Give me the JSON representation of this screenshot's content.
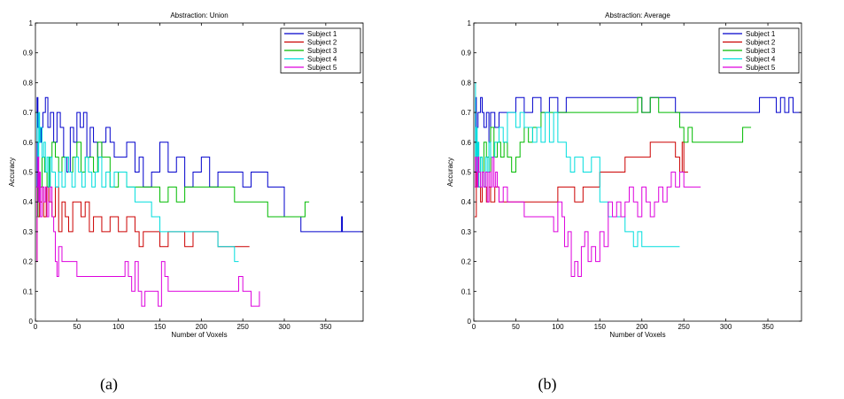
{
  "captions": [
    "(a)",
    "(b)"
  ],
  "colors": [
    "#0000cc",
    "#cc0000",
    "#00bb00",
    "#00dddd",
    "#dd00dd"
  ],
  "chart_data": [
    {
      "type": "line",
      "title": "Abstraction: Union",
      "xlabel": "Number of Voxels",
      "ylabel": "Accuracy",
      "xlim": [
        0,
        395
      ],
      "ylim": [
        0,
        1
      ],
      "xticks": [
        "0",
        "50",
        "100",
        "150",
        "200",
        "250",
        "300",
        "350"
      ],
      "yticks": [
        "0",
        "0.1",
        "0.2",
        "0.3",
        "0.4",
        "0.5",
        "0.6",
        "0.7",
        "0.8",
        "0.9",
        "1"
      ],
      "legend": "top-right",
      "series": [
        {
          "name": "Subject 1",
          "x": [
            1,
            2,
            3,
            5,
            7,
            9,
            12,
            15,
            18,
            22,
            26,
            30,
            34,
            38,
            42,
            46,
            50,
            54,
            58,
            62,
            66,
            70,
            75,
            80,
            85,
            90,
            95,
            100,
            110,
            120,
            125,
            130,
            140,
            150,
            160,
            170,
            180,
            190,
            200,
            210,
            220,
            230,
            250,
            260,
            280,
            300,
            320,
            330,
            340,
            350,
            360,
            368,
            369,
            370,
            380,
            395
          ],
          "y": [
            0.45,
            0.75,
            0.65,
            0.6,
            0.65,
            0.7,
            0.75,
            0.65,
            0.7,
            0.6,
            0.7,
            0.65,
            0.55,
            0.5,
            0.65,
            0.6,
            0.7,
            0.65,
            0.7,
            0.55,
            0.65,
            0.6,
            0.55,
            0.6,
            0.65,
            0.6,
            0.55,
            0.55,
            0.6,
            0.5,
            0.55,
            0.45,
            0.5,
            0.6,
            0.5,
            0.55,
            0.45,
            0.5,
            0.55,
            0.45,
            0.5,
            0.5,
            0.45,
            0.5,
            0.45,
            0.35,
            0.3,
            0.3,
            0.3,
            0.3,
            0.3,
            0.3,
            0.35,
            0.3,
            0.3,
            0.3
          ]
        },
        {
          "name": "Subject 2",
          "x": [
            1,
            2,
            3,
            5,
            8,
            10,
            13,
            16,
            20,
            24,
            28,
            32,
            36,
            40,
            45,
            50,
            55,
            60,
            65,
            70,
            80,
            90,
            100,
            110,
            120,
            125,
            130,
            140,
            150,
            160,
            170,
            180,
            190,
            200,
            210,
            220,
            225,
            258
          ],
          "y": [
            0.2,
            0.45,
            0.35,
            0.4,
            0.45,
            0.35,
            0.45,
            0.4,
            0.35,
            0.45,
            0.3,
            0.4,
            0.35,
            0.3,
            0.4,
            0.4,
            0.35,
            0.4,
            0.3,
            0.35,
            0.3,
            0.35,
            0.3,
            0.35,
            0.3,
            0.25,
            0.3,
            0.3,
            0.25,
            0.3,
            0.3,
            0.25,
            0.3,
            0.3,
            0.3,
            0.25,
            0.25,
            0.25
          ]
        },
        {
          "name": "Subject 3",
          "x": [
            1,
            3,
            5,
            8,
            11,
            14,
            17,
            20,
            24,
            28,
            32,
            36,
            40,
            45,
            50,
            55,
            60,
            65,
            70,
            75,
            80,
            85,
            90,
            100,
            110,
            120,
            130,
            140,
            150,
            160,
            170,
            180,
            190,
            200,
            210,
            220,
            230,
            240,
            260,
            280,
            300,
            320,
            325,
            330
          ],
          "y": [
            0.35,
            0.5,
            0.45,
            0.55,
            0.5,
            0.45,
            0.55,
            0.6,
            0.55,
            0.5,
            0.55,
            0.55,
            0.5,
            0.55,
            0.6,
            0.5,
            0.55,
            0.55,
            0.5,
            0.6,
            0.55,
            0.55,
            0.45,
            0.5,
            0.45,
            0.45,
            0.45,
            0.45,
            0.4,
            0.45,
            0.4,
            0.45,
            0.45,
            0.45,
            0.45,
            0.45,
            0.45,
            0.4,
            0.4,
            0.35,
            0.35,
            0.35,
            0.4,
            0.4
          ]
        },
        {
          "name": "Subject 4",
          "x": [
            1,
            2,
            3,
            4,
            5,
            6,
            8,
            10,
            12,
            14,
            16,
            18,
            20,
            24,
            28,
            32,
            36,
            40,
            44,
            48,
            52,
            56,
            60,
            64,
            68,
            72,
            76,
            80,
            85,
            90,
            95,
            100,
            110,
            120,
            130,
            140,
            150,
            160,
            170,
            180,
            190,
            200,
            210,
            220,
            230,
            240,
            245
          ],
          "y": [
            0.7,
            0.6,
            0.55,
            0.7,
            0.6,
            0.65,
            0.55,
            0.6,
            0.5,
            0.55,
            0.45,
            0.55,
            0.5,
            0.45,
            0.5,
            0.45,
            0.55,
            0.5,
            0.45,
            0.55,
            0.5,
            0.45,
            0.55,
            0.5,
            0.45,
            0.5,
            0.55,
            0.45,
            0.5,
            0.45,
            0.5,
            0.5,
            0.45,
            0.4,
            0.4,
            0.35,
            0.3,
            0.3,
            0.3,
            0.3,
            0.3,
            0.3,
            0.3,
            0.25,
            0.25,
            0.2,
            0.2
          ]
        },
        {
          "name": "Subject 5",
          "x": [
            1,
            2,
            3,
            4,
            5,
            6,
            8,
            10,
            12,
            14,
            16,
            18,
            20,
            22,
            24,
            26,
            28,
            32,
            36,
            40,
            50,
            60,
            70,
            80,
            90,
            100,
            108,
            112,
            116,
            120,
            124,
            128,
            132,
            140,
            148,
            152,
            156,
            160,
            170,
            180,
            190,
            200,
            210,
            220,
            230,
            240,
            245,
            250,
            260,
            265,
            270
          ],
          "y": [
            0.2,
            0.45,
            0.55,
            0.4,
            0.5,
            0.35,
            0.45,
            0.4,
            0.45,
            0.35,
            0.4,
            0.45,
            0.35,
            0.3,
            0.2,
            0.15,
            0.25,
            0.2,
            0.2,
            0.2,
            0.15,
            0.15,
            0.15,
            0.15,
            0.15,
            0.15,
            0.2,
            0.15,
            0.1,
            0.2,
            0.1,
            0.05,
            0.1,
            0.1,
            0.05,
            0.2,
            0.15,
            0.1,
            0.1,
            0.1,
            0.1,
            0.1,
            0.1,
            0.1,
            0.1,
            0.1,
            0.15,
            0.1,
            0.05,
            0.05,
            0.1
          ]
        }
      ]
    },
    {
      "type": "line",
      "title": "Abstraction: Average",
      "xlabel": "Number of Voxels",
      "ylabel": "Accuracy",
      "xlim": [
        0,
        390
      ],
      "ylim": [
        0,
        1
      ],
      "xticks": [
        "0",
        "50",
        "100",
        "150",
        "200",
        "250",
        "300",
        "350"
      ],
      "yticks": [
        "0",
        "0.1",
        "0.2",
        "0.3",
        "0.4",
        "0.5",
        "0.6",
        "0.7",
        "0.8",
        "0.9",
        "1"
      ],
      "legend": "top-right",
      "series": [
        {
          "name": "Subject 1",
          "x": [
            1,
            2,
            3,
            5,
            8,
            10,
            12,
            15,
            18,
            20,
            25,
            30,
            40,
            50,
            60,
            70,
            80,
            90,
            100,
            110,
            120,
            130,
            140,
            150,
            160,
            170,
            180,
            190,
            200,
            210,
            220,
            230,
            240,
            250,
            260,
            300,
            340,
            345,
            355,
            360,
            365,
            370,
            375,
            380,
            385,
            390
          ],
          "y": [
            0.6,
            0.75,
            0.65,
            0.7,
            0.75,
            0.7,
            0.65,
            0.7,
            0.6,
            0.7,
            0.65,
            0.7,
            0.7,
            0.75,
            0.7,
            0.75,
            0.7,
            0.75,
            0.7,
            0.75,
            0.75,
            0.75,
            0.75,
            0.75,
            0.75,
            0.75,
            0.75,
            0.75,
            0.7,
            0.75,
            0.75,
            0.75,
            0.7,
            0.7,
            0.7,
            0.7,
            0.75,
            0.75,
            0.75,
            0.7,
            0.75,
            0.7,
            0.75,
            0.7,
            0.7,
            0.7
          ]
        },
        {
          "name": "Subject 2",
          "x": [
            1,
            3,
            5,
            8,
            10,
            12,
            15,
            18,
            20,
            25,
            30,
            40,
            60,
            80,
            100,
            120,
            130,
            140,
            150,
            160,
            170,
            180,
            200,
            210,
            220,
            240,
            245,
            248,
            250,
            255
          ],
          "y": [
            0.35,
            0.5,
            0.45,
            0.4,
            0.5,
            0.45,
            0.4,
            0.45,
            0.4,
            0.45,
            0.4,
            0.4,
            0.4,
            0.4,
            0.45,
            0.4,
            0.45,
            0.45,
            0.5,
            0.5,
            0.5,
            0.55,
            0.55,
            0.6,
            0.6,
            0.55,
            0.5,
            0.6,
            0.5,
            0.5
          ]
        },
        {
          "name": "Subject 3",
          "x": [
            1,
            2,
            4,
            6,
            8,
            10,
            12,
            15,
            18,
            20,
            24,
            28,
            32,
            36,
            40,
            45,
            50,
            55,
            60,
            65,
            70,
            80,
            90,
            100,
            120,
            140,
            160,
            180,
            195,
            200,
            210,
            220,
            240,
            245,
            250,
            255,
            260,
            270,
            290,
            310,
            320,
            330
          ],
          "y": [
            0.5,
            0.6,
            0.55,
            0.5,
            0.55,
            0.5,
            0.6,
            0.55,
            0.5,
            0.65,
            0.55,
            0.6,
            0.55,
            0.6,
            0.55,
            0.5,
            0.55,
            0.6,
            0.65,
            0.6,
            0.65,
            0.7,
            0.7,
            0.7,
            0.7,
            0.7,
            0.7,
            0.7,
            0.75,
            0.7,
            0.75,
            0.7,
            0.7,
            0.65,
            0.6,
            0.65,
            0.6,
            0.6,
            0.6,
            0.6,
            0.65,
            0.65
          ]
        },
        {
          "name": "Subject 4",
          "x": [
            1,
            2,
            3,
            4,
            5,
            6,
            8,
            10,
            12,
            14,
            16,
            18,
            20,
            25,
            30,
            35,
            40,
            50,
            55,
            60,
            70,
            75,
            80,
            85,
            90,
            95,
            100,
            110,
            115,
            120,
            130,
            140,
            150,
            160,
            170,
            180,
            190,
            195,
            200,
            210,
            220,
            230,
            240,
            245
          ],
          "y": [
            0.8,
            0.55,
            0.65,
            0.5,
            0.6,
            0.45,
            0.55,
            0.5,
            0.45,
            0.55,
            0.5,
            0.6,
            0.55,
            0.6,
            0.65,
            0.6,
            0.7,
            0.65,
            0.7,
            0.65,
            0.6,
            0.65,
            0.6,
            0.7,
            0.6,
            0.7,
            0.6,
            0.55,
            0.5,
            0.55,
            0.5,
            0.55,
            0.4,
            0.35,
            0.35,
            0.3,
            0.25,
            0.3,
            0.25,
            0.25,
            0.25,
            0.25,
            0.25,
            0.25
          ]
        },
        {
          "name": "Subject 5",
          "x": [
            1,
            2,
            3,
            4,
            5,
            6,
            8,
            10,
            12,
            14,
            16,
            18,
            20,
            22,
            24,
            26,
            28,
            30,
            35,
            40,
            50,
            60,
            70,
            80,
            90,
            95,
            100,
            105,
            108,
            112,
            116,
            120,
            124,
            128,
            132,
            136,
            140,
            145,
            150,
            155,
            160,
            165,
            170,
            175,
            180,
            185,
            190,
            195,
            200,
            205,
            210,
            215,
            220,
            225,
            230,
            235,
            240,
            245,
            250,
            260,
            270
          ],
          "y": [
            0.45,
            0.55,
            0.5,
            0.45,
            0.55,
            0.5,
            0.45,
            0.5,
            0.45,
            0.5,
            0.4,
            0.5,
            0.45,
            0.55,
            0.45,
            0.5,
            0.45,
            0.4,
            0.45,
            0.4,
            0.4,
            0.35,
            0.35,
            0.35,
            0.35,
            0.3,
            0.4,
            0.35,
            0.25,
            0.3,
            0.15,
            0.2,
            0.15,
            0.25,
            0.3,
            0.2,
            0.25,
            0.2,
            0.3,
            0.25,
            0.4,
            0.35,
            0.4,
            0.35,
            0.4,
            0.45,
            0.4,
            0.35,
            0.45,
            0.4,
            0.35,
            0.4,
            0.45,
            0.4,
            0.45,
            0.5,
            0.45,
            0.5,
            0.45,
            0.45,
            0.45
          ]
        }
      ]
    }
  ]
}
